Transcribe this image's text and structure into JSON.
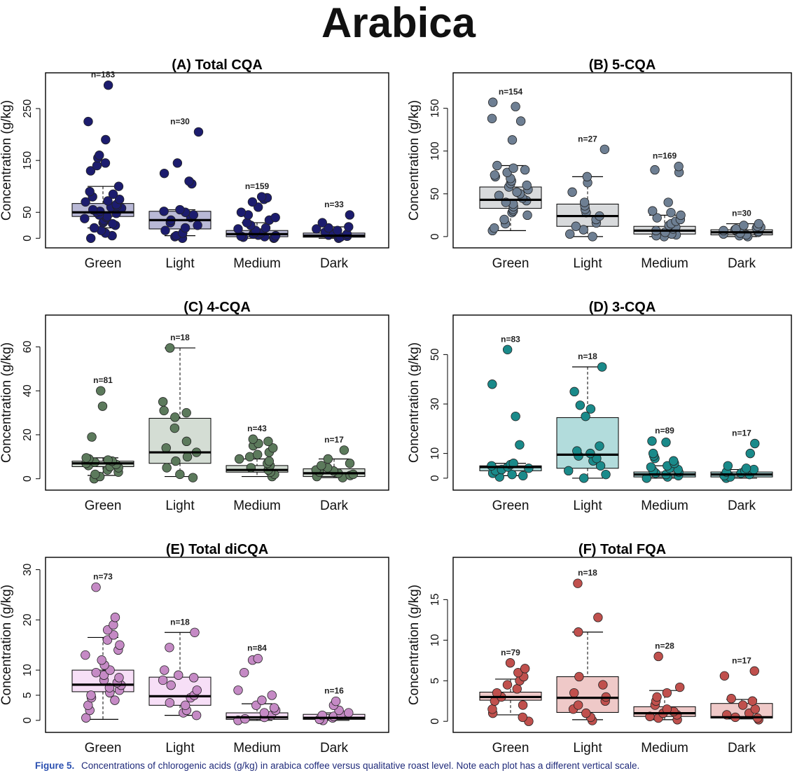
{
  "title": "Arabica",
  "caption": {
    "label": "Figure 5.",
    "text": "Concentrations of chlorogenic acids (g/kg) in arabica coffee versus qualitative roast level. Note each plot has a different vertical scale."
  },
  "chart_data": [
    {
      "type": "box",
      "title": "(A) Total CQA",
      "ylabel": "Concentration (g/kg)",
      "categories": [
        "Green",
        "Light",
        "Medium",
        "Dark"
      ],
      "yticks": [
        0,
        50,
        150,
        250
      ],
      "ylim": [
        -5,
        300
      ],
      "color": "#1c1c6e",
      "box_fill": "#b9b9d6",
      "groups": [
        {
          "n": "n=183",
          "min": 20,
          "q1": 42,
          "median": 50,
          "q3": 67,
          "max": 100,
          "points": [
            0,
            5,
            10,
            15,
            20,
            25,
            28,
            30,
            32,
            35,
            38,
            40,
            42,
            45,
            48,
            50,
            52,
            55,
            58,
            60,
            62,
            65,
            70,
            72,
            75,
            80,
            85,
            90,
            100,
            130,
            140,
            145,
            155,
            160,
            190,
            225,
            295
          ]
        },
        {
          "n": "n=30",
          "min": 5,
          "q1": 18,
          "median": 35,
          "q3": 52,
          "max": 55,
          "points": [
            0,
            3,
            5,
            10,
            15,
            20,
            25,
            30,
            35,
            40,
            45,
            50,
            52,
            55,
            105,
            110,
            125,
            145,
            205
          ]
        },
        {
          "n": "n=159",
          "min": 0,
          "q1": 3,
          "median": 8,
          "q3": 15,
          "max": 30,
          "points": [
            0,
            1,
            2,
            3,
            4,
            5,
            6,
            8,
            10,
            12,
            15,
            18,
            20,
            25,
            30,
            35,
            40,
            45,
            50,
            60,
            70,
            75,
            78,
            80
          ]
        },
        {
          "n": "n=33",
          "min": 0,
          "q1": 2,
          "median": 5,
          "q3": 10,
          "max": 22,
          "points": [
            0,
            2,
            4,
            6,
            8,
            10,
            12,
            15,
            18,
            20,
            22,
            30,
            45
          ]
        }
      ]
    },
    {
      "type": "box",
      "title": "(B) 5-CQA",
      "ylabel": "Concentration (g/kg)",
      "categories": [
        "Green",
        "Light",
        "Medium",
        "Dark"
      ],
      "yticks": [
        0,
        50,
        100,
        150
      ],
      "ylim": [
        -5,
        180
      ],
      "color": "#6e7f93",
      "box_fill": "#d8dadc",
      "groups": [
        {
          "n": "n=154",
          "min": 7,
          "q1": 33,
          "median": 43,
          "q3": 58,
          "max": 83,
          "points": [
            7,
            10,
            15,
            20,
            25,
            28,
            30,
            32,
            35,
            38,
            40,
            42,
            45,
            48,
            50,
            52,
            55,
            58,
            60,
            62,
            65,
            68,
            70,
            72,
            75,
            78,
            80,
            83,
            113,
            135,
            138,
            152,
            157
          ]
        },
        {
          "n": "n=27",
          "min": 0,
          "q1": 12,
          "median": 24,
          "q3": 38,
          "max": 70,
          "points": [
            0,
            3,
            8,
            12,
            16,
            20,
            24,
            28,
            32,
            36,
            40,
            52,
            63,
            70,
            102
          ]
        },
        {
          "n": "n=169",
          "min": 0,
          "q1": 3,
          "median": 7,
          "q3": 12,
          "max": 25,
          "points": [
            0,
            1,
            2,
            3,
            5,
            7,
            9,
            11,
            13,
            15,
            18,
            20,
            22,
            25,
            28,
            30,
            40,
            75,
            78,
            82
          ]
        },
        {
          "n": "n=30",
          "min": 0,
          "q1": 2,
          "median": 5,
          "q3": 8,
          "max": 15,
          "points": [
            0,
            1,
            2,
            3,
            4,
            5,
            6,
            7,
            8,
            9,
            10,
            11,
            12,
            13,
            15
          ]
        }
      ]
    },
    {
      "type": "box",
      "title": "(C) 4-CQA",
      "ylabel": "Concentration (g/kg)",
      "categories": [
        "Green",
        "Light",
        "Medium",
        "Dark"
      ],
      "yticks": [
        0,
        20,
        40,
        60
      ],
      "ylim": [
        -2,
        70
      ],
      "color": "#5c7a5c",
      "box_fill": "#d4ddd4",
      "groups": [
        {
          "n": "n=81",
          "min": 1.5,
          "q1": 5.5,
          "median": 7,
          "q3": 8,
          "max": 9.5,
          "points": [
            0,
            1,
            2,
            3,
            4,
            5,
            5.5,
            6,
            6.5,
            7,
            7.5,
            8,
            8.5,
            9,
            9.5,
            19,
            33,
            40
          ]
        },
        {
          "n": "n=18",
          "min": 1,
          "q1": 7,
          "median": 12,
          "q3": 27.5,
          "max": 59.5,
          "points": [
            0.5,
            2,
            5,
            8,
            10,
            12,
            14,
            17,
            23,
            28,
            30,
            31,
            35,
            59.5
          ]
        },
        {
          "n": "n=43",
          "min": 1,
          "q1": 3,
          "median": 4,
          "q3": 6,
          "max": 9,
          "points": [
            1,
            2,
            3,
            4,
            5,
            6,
            7,
            8,
            9,
            10,
            11,
            12,
            14,
            15,
            16,
            17,
            18
          ]
        },
        {
          "n": "n=17",
          "min": 0.5,
          "q1": 1,
          "median": 2.5,
          "q3": 4.5,
          "max": 9,
          "points": [
            0.5,
            1,
            1.5,
            2,
            2.5,
            3,
            3.5,
            4,
            5,
            6,
            7,
            9,
            13
          ]
        }
      ]
    },
    {
      "type": "box",
      "title": "(D) 3-CQA",
      "ylabel": "Concentration (g/kg)",
      "categories": [
        "Green",
        "Light",
        "Medium",
        "Dark"
      ],
      "yticks": [
        0,
        10,
        30,
        50
      ],
      "ylim": [
        -2,
        62
      ],
      "color": "#1a8a8a",
      "box_fill": "#b2dcdc",
      "groups": [
        {
          "n": "n=83",
          "min": 1,
          "q1": 3,
          "median": 4.5,
          "q3": 5,
          "max": 6,
          "points": [
            0.5,
            1,
            1.5,
            2,
            3,
            3.5,
            4,
            4.5,
            5,
            5.5,
            6,
            13.5,
            25,
            38,
            52
          ]
        },
        {
          "n": "n=18",
          "min": 0,
          "q1": 4,
          "median": 9.5,
          "q3": 24.5,
          "max": 45,
          "points": [
            0,
            1.5,
            3,
            5,
            7,
            8,
            9,
            10,
            11,
            13,
            25,
            28,
            29.5,
            35,
            45
          ]
        },
        {
          "n": "n=89",
          "min": 0,
          "q1": 0.5,
          "median": 1.5,
          "q3": 2.5,
          "max": 5,
          "points": [
            0,
            0.5,
            1,
            1.5,
            2,
            2.5,
            3,
            3.5,
            4,
            4.5,
            5,
            6,
            7,
            8,
            9,
            10,
            14.5,
            15
          ]
        },
        {
          "n": "n=17",
          "min": 0,
          "q1": 0.5,
          "median": 1.5,
          "q3": 2.5,
          "max": 3.5,
          "points": [
            0,
            0.5,
            1,
            1.5,
            2,
            2.5,
            3,
            3.5,
            4,
            5,
            10,
            14
          ]
        }
      ]
    },
    {
      "type": "box",
      "title": "(E) Total diCQA",
      "ylabel": "Concentration (g/kg)",
      "categories": [
        "Green",
        "Light",
        "Medium",
        "Dark"
      ],
      "yticks": [
        0,
        5,
        10,
        20,
        30
      ],
      "ylim": [
        -1,
        30.5
      ],
      "color": "#c58ac5",
      "box_fill": "#f7dff7",
      "groups": [
        {
          "n": "n=73",
          "min": 0.2,
          "q1": 5.7,
          "median": 7.1,
          "q3": 10,
          "max": 16.5,
          "points": [
            0.5,
            2,
            3,
            4,
            4.5,
            5,
            5.5,
            6,
            6.5,
            7,
            7.5,
            8,
            8.5,
            9,
            9.5,
            10,
            11,
            12,
            13,
            14,
            15,
            16,
            17,
            18,
            19,
            20.5,
            26.5
          ]
        },
        {
          "n": "n=18",
          "min": 1,
          "q1": 3,
          "median": 4.8,
          "q3": 8.6,
          "max": 17.5,
          "points": [
            1,
            1.5,
            2,
            3,
            3.5,
            4.5,
            5,
            6,
            7,
            8,
            8.5,
            9,
            10,
            14.5,
            17.5
          ]
        },
        {
          "n": "n=84",
          "min": 0,
          "q1": 0.2,
          "median": 0.6,
          "q3": 1.5,
          "max": 3.3,
          "points": [
            0,
            0.3,
            0.6,
            1,
            1.5,
            2,
            2.5,
            3,
            4,
            5,
            6,
            9.5,
            12,
            12.3
          ]
        },
        {
          "n": "n=16",
          "min": 0,
          "q1": 0.2,
          "median": 0.5,
          "q3": 1.2,
          "max": 1.5,
          "points": [
            0,
            0.2,
            0.5,
            0.8,
            1,
            1.2,
            1.5,
            2,
            3,
            3.8
          ]
        }
      ]
    },
    {
      "type": "box",
      "title": "(F) Total FQA",
      "ylabel": "Concentration (g/kg)",
      "categories": [
        "Green",
        "Light",
        "Medium",
        "Dark"
      ],
      "yticks": [
        0,
        5,
        10,
        15
      ],
      "ylim": [
        -0.5,
        19
      ],
      "color": "#c0504d",
      "box_fill": "#efc9c8",
      "groups": [
        {
          "n": "n=79",
          "min": 0.8,
          "q1": 2.6,
          "median": 3,
          "q3": 3.6,
          "max": 5.2,
          "points": [
            0,
            0.5,
            1,
            1.5,
            2,
            2.5,
            3,
            3.5,
            4,
            4.5,
            5,
            5.5,
            6,
            6.5,
            7.2
          ]
        },
        {
          "n": "n=18",
          "min": 0.2,
          "q1": 1.1,
          "median": 2.9,
          "q3": 5.5,
          "max": 11,
          "points": [
            0.1,
            0.5,
            1,
            1.5,
            2,
            2.5,
            3,
            3.5,
            4.5,
            5.5,
            11,
            12.8,
            17
          ]
        },
        {
          "n": "n=28",
          "min": 0.2,
          "q1": 0.6,
          "median": 1,
          "q3": 1.8,
          "max": 3.8,
          "points": [
            0.2,
            0.4,
            0.6,
            0.8,
            1,
            1.2,
            1.5,
            2,
            2.5,
            3,
            3.5,
            4.2,
            8
          ]
        },
        {
          "n": "n=17",
          "min": 0.3,
          "q1": 0.4,
          "median": 0.5,
          "q3": 2.2,
          "max": 2.7,
          "points": [
            0.2,
            0.4,
            0.5,
            0.8,
            1,
            1.5,
            2,
            2.5,
            2.8,
            5.6,
            6.2
          ]
        }
      ]
    }
  ]
}
